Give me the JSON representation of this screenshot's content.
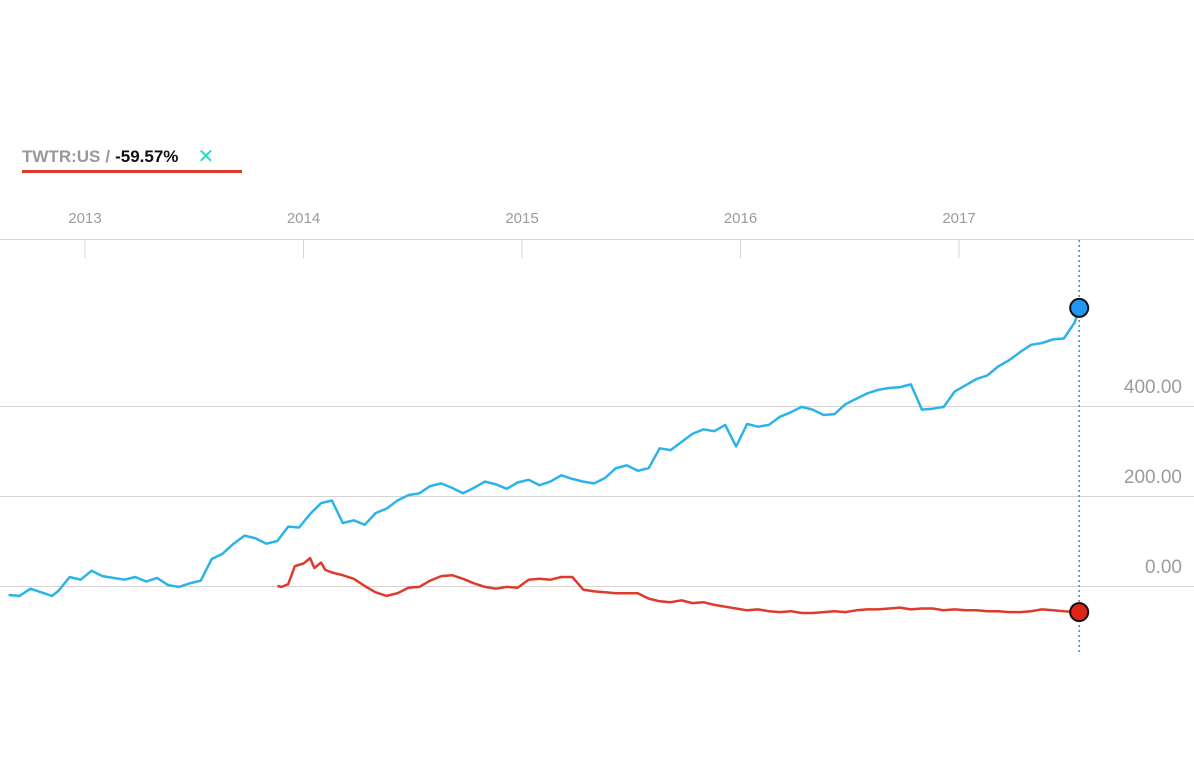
{
  "legend": {
    "ticker": "TWTR:US",
    "separator": "/",
    "change": "-59.57%",
    "close_symbol": "✕",
    "underline_color": "#e03a2c",
    "close_color": "#26d9c9"
  },
  "chart_data": {
    "type": "line",
    "title": "",
    "xlabel": "",
    "ylabel": "",
    "x_ticks": [
      "2013",
      "2014",
      "2015",
      "2016",
      "2017"
    ],
    "y_ticks": [
      "400.00",
      "200.00",
      "0.00"
    ],
    "ylim": [
      -150,
      700
    ],
    "xlim": [
      2012.65,
      2017.79
    ],
    "grid": true,
    "cursor_x": 2017.55,
    "series": [
      {
        "color": "#2bb3ea",
        "marker_color": "#2196f3",
        "points": [
          [
            2012.65,
            -20
          ],
          [
            2012.7,
            -22
          ],
          [
            2012.75,
            -6
          ],
          [
            2012.8,
            -14
          ],
          [
            2012.85,
            -22
          ],
          [
            2012.88,
            -10
          ],
          [
            2012.93,
            20
          ],
          [
            2012.98,
            14
          ],
          [
            2013.03,
            34
          ],
          [
            2013.08,
            22
          ],
          [
            2013.13,
            18
          ],
          [
            2013.18,
            14
          ],
          [
            2013.23,
            20
          ],
          [
            2013.28,
            10
          ],
          [
            2013.33,
            18
          ],
          [
            2013.38,
            2
          ],
          [
            2013.43,
            -2
          ],
          [
            2013.48,
            6
          ],
          [
            2013.53,
            12
          ],
          [
            2013.58,
            60
          ],
          [
            2013.63,
            72
          ],
          [
            2013.68,
            94
          ],
          [
            2013.73,
            112
          ],
          [
            2013.78,
            106
          ],
          [
            2013.83,
            94
          ],
          [
            2013.88,
            100
          ],
          [
            2013.93,
            132
          ],
          [
            2013.98,
            130
          ],
          [
            2014.03,
            160
          ],
          [
            2014.08,
            184
          ],
          [
            2014.13,
            190
          ],
          [
            2014.18,
            140
          ],
          [
            2014.23,
            146
          ],
          [
            2014.28,
            136
          ],
          [
            2014.33,
            162
          ],
          [
            2014.38,
            172
          ],
          [
            2014.43,
            190
          ],
          [
            2014.48,
            202
          ],
          [
            2014.53,
            206
          ],
          [
            2014.58,
            222
          ],
          [
            2014.63,
            228
          ],
          [
            2014.68,
            218
          ],
          [
            2014.73,
            206
          ],
          [
            2014.78,
            218
          ],
          [
            2014.83,
            232
          ],
          [
            2014.88,
            226
          ],
          [
            2014.93,
            216
          ],
          [
            2014.98,
            230
          ],
          [
            2015.03,
            236
          ],
          [
            2015.08,
            224
          ],
          [
            2015.13,
            232
          ],
          [
            2015.18,
            246
          ],
          [
            2015.23,
            238
          ],
          [
            2015.28,
            232
          ],
          [
            2015.33,
            228
          ],
          [
            2015.38,
            240
          ],
          [
            2015.43,
            262
          ],
          [
            2015.48,
            268
          ],
          [
            2015.53,
            256
          ],
          [
            2015.58,
            262
          ],
          [
            2015.63,
            306
          ],
          [
            2015.68,
            302
          ],
          [
            2015.73,
            320
          ],
          [
            2015.78,
            338
          ],
          [
            2015.83,
            348
          ],
          [
            2015.88,
            344
          ],
          [
            2015.93,
            358
          ],
          [
            2015.98,
            310
          ],
          [
            2016.03,
            360
          ],
          [
            2016.08,
            354
          ],
          [
            2016.13,
            358
          ],
          [
            2016.18,
            376
          ],
          [
            2016.23,
            386
          ],
          [
            2016.28,
            398
          ],
          [
            2016.33,
            392
          ],
          [
            2016.38,
            380
          ],
          [
            2016.43,
            382
          ],
          [
            2016.48,
            404
          ],
          [
            2016.53,
            416
          ],
          [
            2016.58,
            428
          ],
          [
            2016.63,
            436
          ],
          [
            2016.68,
            440
          ],
          [
            2016.73,
            442
          ],
          [
            2016.78,
            448
          ],
          [
            2016.83,
            392
          ],
          [
            2016.88,
            394
          ],
          [
            2016.93,
            398
          ],
          [
            2016.98,
            432
          ],
          [
            2017.03,
            446
          ],
          [
            2017.08,
            460
          ],
          [
            2017.13,
            468
          ],
          [
            2017.18,
            488
          ],
          [
            2017.23,
            502
          ],
          [
            2017.28,
            520
          ],
          [
            2017.33,
            536
          ],
          [
            2017.38,
            540
          ],
          [
            2017.43,
            548
          ],
          [
            2017.48,
            550
          ],
          [
            2017.53,
            586
          ],
          [
            2017.55,
            618
          ]
        ]
      },
      {
        "color": "#e03a2c",
        "marker_color": "#e0231b",
        "points": [
          [
            2013.88,
            0
          ],
          [
            2013.9,
            -2
          ],
          [
            2013.93,
            4
          ],
          [
            2013.96,
            44
          ],
          [
            2014.0,
            50
          ],
          [
            2014.03,
            62
          ],
          [
            2014.05,
            40
          ],
          [
            2014.08,
            52
          ],
          [
            2014.1,
            36
          ],
          [
            2014.13,
            30
          ],
          [
            2014.18,
            24
          ],
          [
            2014.23,
            16
          ],
          [
            2014.28,
            0
          ],
          [
            2014.33,
            -14
          ],
          [
            2014.38,
            -22
          ],
          [
            2014.43,
            -16
          ],
          [
            2014.48,
            -4
          ],
          [
            2014.53,
            -2
          ],
          [
            2014.58,
            12
          ],
          [
            2014.63,
            22
          ],
          [
            2014.68,
            24
          ],
          [
            2014.73,
            16
          ],
          [
            2014.78,
            6
          ],
          [
            2014.83,
            -2
          ],
          [
            2014.88,
            -6
          ],
          [
            2014.93,
            -2
          ],
          [
            2014.98,
            -4
          ],
          [
            2015.03,
            14
          ],
          [
            2015.08,
            16
          ],
          [
            2015.13,
            14
          ],
          [
            2015.18,
            20
          ],
          [
            2015.23,
            20
          ],
          [
            2015.28,
            -8
          ],
          [
            2015.33,
            -12
          ],
          [
            2015.38,
            -14
          ],
          [
            2015.43,
            -16
          ],
          [
            2015.48,
            -16
          ],
          [
            2015.53,
            -16
          ],
          [
            2015.58,
            -28
          ],
          [
            2015.63,
            -34
          ],
          [
            2015.68,
            -36
          ],
          [
            2015.73,
            -32
          ],
          [
            2015.78,
            -38
          ],
          [
            2015.83,
            -36
          ],
          [
            2015.88,
            -42
          ],
          [
            2015.93,
            -46
          ],
          [
            2015.98,
            -50
          ],
          [
            2016.03,
            -54
          ],
          [
            2016.08,
            -52
          ],
          [
            2016.13,
            -56
          ],
          [
            2016.18,
            -58
          ],
          [
            2016.23,
            -56
          ],
          [
            2016.28,
            -60
          ],
          [
            2016.33,
            -60
          ],
          [
            2016.38,
            -58
          ],
          [
            2016.43,
            -56
          ],
          [
            2016.48,
            -58
          ],
          [
            2016.53,
            -54
          ],
          [
            2016.58,
            -52
          ],
          [
            2016.63,
            -52
          ],
          [
            2016.68,
            -50
          ],
          [
            2016.73,
            -48
          ],
          [
            2016.78,
            -52
          ],
          [
            2016.83,
            -50
          ],
          [
            2016.88,
            -50
          ],
          [
            2016.93,
            -54
          ],
          [
            2016.98,
            -52
          ],
          [
            2017.03,
            -54
          ],
          [
            2017.08,
            -54
          ],
          [
            2017.13,
            -56
          ],
          [
            2017.18,
            -56
          ],
          [
            2017.23,
            -58
          ],
          [
            2017.28,
            -58
          ],
          [
            2017.33,
            -56
          ],
          [
            2017.38,
            -52
          ],
          [
            2017.43,
            -54
          ],
          [
            2017.48,
            -56
          ],
          [
            2017.55,
            -58
          ]
        ]
      }
    ]
  }
}
